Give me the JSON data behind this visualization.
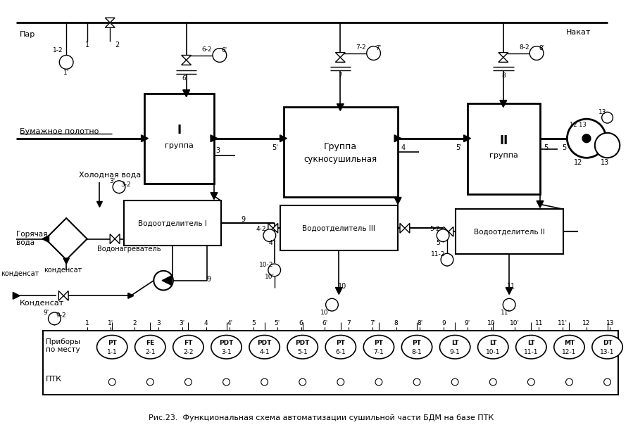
{
  "title": "Рис.23.  Функциональная схема автоматизации сушильной части БДМ на базе ПТК",
  "bg_color": "#ffffff",
  "instruments": [
    {
      "label": "PT\n1-1"
    },
    {
      "label": "FE\n2-1"
    },
    {
      "label": "FT\n2-2"
    },
    {
      "label": "PDT\n3-1"
    },
    {
      "label": "PDT\n4-1"
    },
    {
      "label": "PDT\n5-1"
    },
    {
      "label": "PT\n6-1"
    },
    {
      "label": "PT\n7-1"
    },
    {
      "label": "PT\n8-1"
    },
    {
      "label": "LT\n9-1"
    },
    {
      "label": "LT\n10-1"
    },
    {
      "label": "LT\n11-1"
    },
    {
      "label": "MT\n12-1"
    },
    {
      "label": "DT\n13-1"
    }
  ],
  "col_numbers": [
    "1",
    "1'",
    "2",
    "3",
    "3'",
    "4",
    "4'",
    "5",
    "5'",
    "6",
    "6'",
    "7",
    "7'",
    "8",
    "8'",
    "9",
    "9'",
    "10",
    "10'",
    "11",
    "11'",
    "12",
    "13"
  ]
}
